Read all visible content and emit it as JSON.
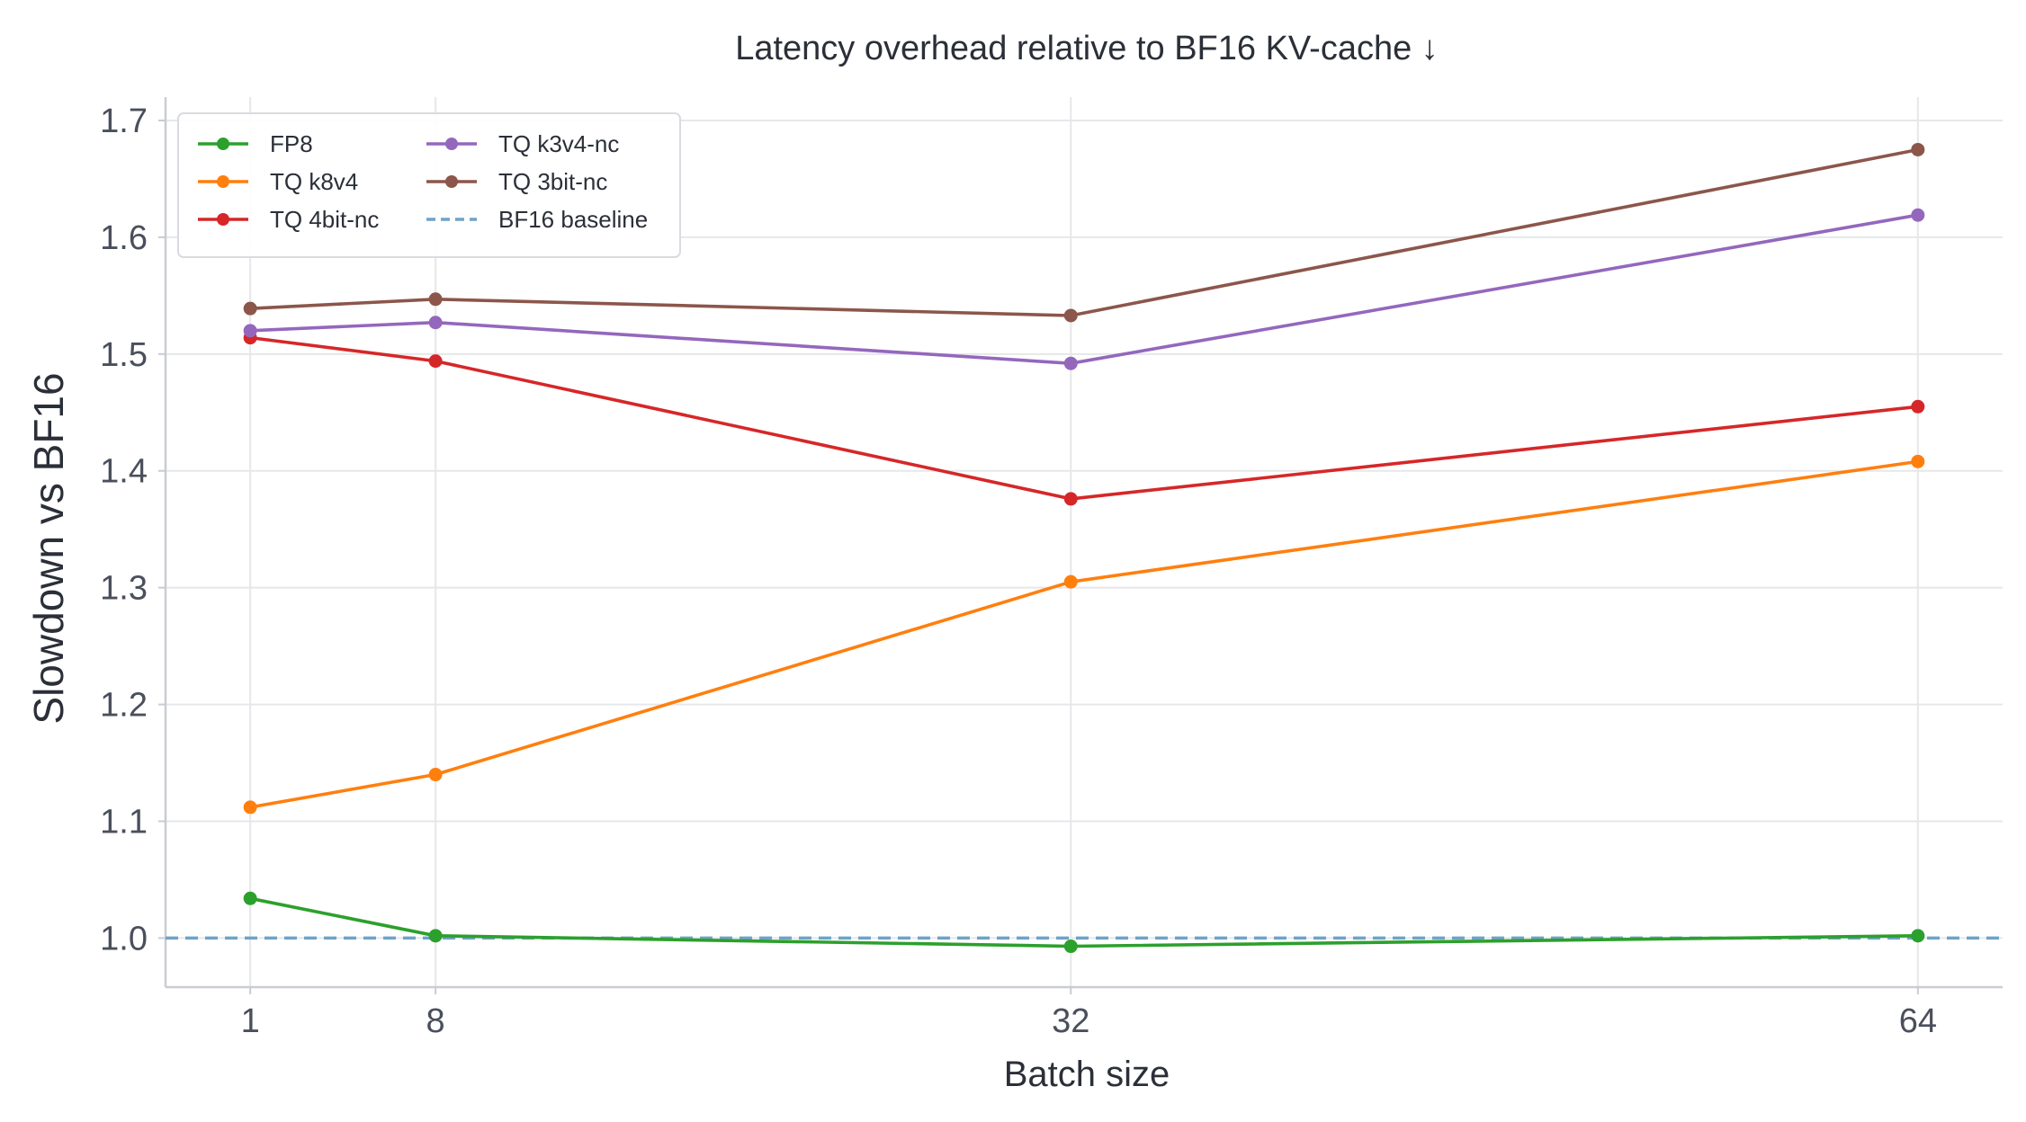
{
  "chart_data": {
    "type": "line",
    "title": "Latency overhead relative to BF16 KV-cache  ↓",
    "xlabel": "Batch size",
    "ylabel": "Slowdown vs BF16",
    "x": [
      1,
      8,
      32,
      64
    ],
    "x_tick_labels": [
      "1",
      "8",
      "32",
      "64"
    ],
    "xlim": [
      -2.2,
      67.2
    ],
    "ylim": [
      0.958,
      1.72
    ],
    "y_ticks": [
      1.0,
      1.1,
      1.2,
      1.3,
      1.4,
      1.5,
      1.6,
      1.7
    ],
    "y_tick_labels": [
      "1.0",
      "1.1",
      "1.2",
      "1.3",
      "1.4",
      "1.5",
      "1.6",
      "1.7"
    ],
    "grid": true,
    "legend_position": "top-left",
    "series": [
      {
        "name": "FP8",
        "color": "#2ca02c",
        "values": [
          1.034,
          1.002,
          0.993,
          1.002
        ]
      },
      {
        "name": "TQ k8v4",
        "color": "#ff7f0e",
        "values": [
          1.112,
          1.14,
          1.305,
          1.408
        ]
      },
      {
        "name": "TQ 4bit-nc",
        "color": "#d62728",
        "values": [
          1.514,
          1.494,
          1.376,
          1.455
        ]
      },
      {
        "name": "TQ k3v4-nc",
        "color": "#9467bd",
        "values": [
          1.52,
          1.527,
          1.492,
          1.619
        ]
      },
      {
        "name": "TQ 3bit-nc",
        "color": "#8c564b",
        "values": [
          1.539,
          1.547,
          1.533,
          1.675
        ]
      }
    ],
    "baseline": {
      "name": "BF16 baseline",
      "value": 1.0,
      "color": "#6fa3c8",
      "style": "dashed"
    }
  }
}
